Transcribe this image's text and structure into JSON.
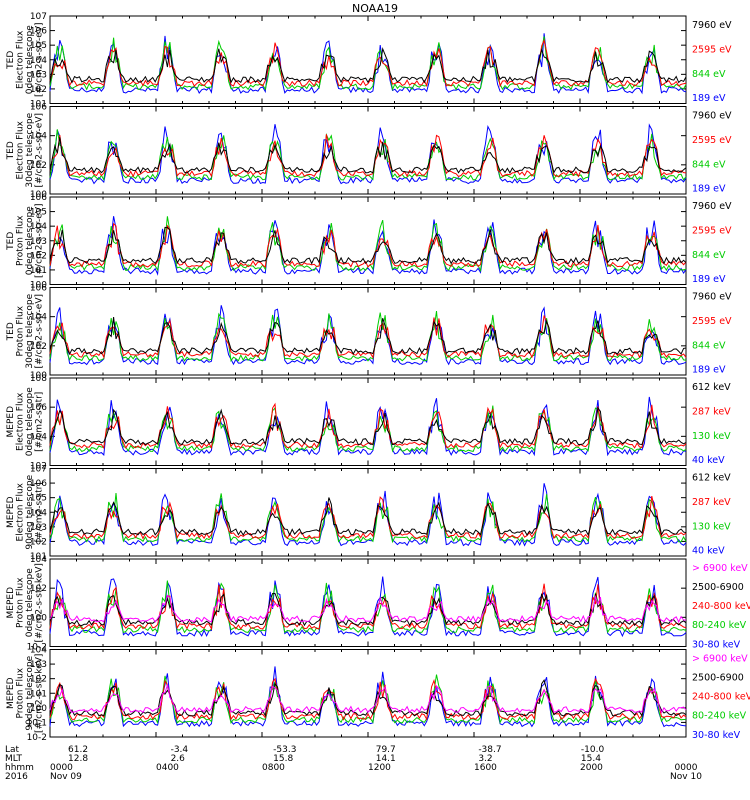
{
  "chart_data": {
    "type": "line",
    "title": "NOAA19",
    "x": {
      "rows": [
        {
          "label": "Lat",
          "values": [
            "61.2",
            "-3.4",
            "-53.3",
            "79.7",
            "-38.7",
            "-10.0"
          ]
        },
        {
          "label": "MLT",
          "values": [
            "12.8",
            "2.6",
            "15.8",
            "14.1",
            "3.2",
            "15.4"
          ]
        },
        {
          "label": "hhmm",
          "values": [
            "0000",
            "0400",
            "0800",
            "1200",
            "1600",
            "2000",
            "0000"
          ]
        },
        {
          "label": "2016",
          "values": [
            "Nov 09",
            "",
            "",
            "",
            "",
            "",
            "Nov 10"
          ]
        }
      ],
      "range_hours": [
        0,
        24
      ]
    },
    "panels": [
      {
        "instrument": "TED",
        "ylabel": [
          "TED",
          "Electron Flux",
          "0deg telescope",
          "[#/cm2-s-str-eV]"
        ],
        "yticks": [
          "10^1",
          "10^2",
          "10^3",
          "10^4",
          "10^5",
          "10^6",
          "10^7"
        ],
        "legend": [
          {
            "label": "7960 eV",
            "color": "#000000"
          },
          {
            "label": "2595 eV",
            "color": "#ff0000"
          },
          {
            "label": "844 eV",
            "color": "#00cc00"
          },
          {
            "label": "189 eV",
            "color": "#0000ff"
          }
        ]
      },
      {
        "instrument": "TED",
        "ylabel": [
          "TED",
          "Electron Flux",
          "30deg telescope",
          "[#/cm2-s-str-eV]"
        ],
        "yticks": [
          "10^0",
          "10^2",
          "10^4",
          "10^6"
        ],
        "legend": [
          {
            "label": "7960 eV",
            "color": "#000000"
          },
          {
            "label": "2595 eV",
            "color": "#ff0000"
          },
          {
            "label": "844 eV",
            "color": "#00cc00"
          },
          {
            "label": "189 eV",
            "color": "#0000ff"
          }
        ]
      },
      {
        "instrument": "TED",
        "ylabel": [
          "TED",
          "Proton Flux",
          "0deg telescope",
          "[#/cm2-s-str-eV]"
        ],
        "yticks": [
          "10^0",
          "10^1",
          "10^2",
          "10^3",
          "10^4",
          "10^5",
          "10^6"
        ],
        "legend": [
          {
            "label": "7960 eV",
            "color": "#000000"
          },
          {
            "label": "2595 eV",
            "color": "#ff0000"
          },
          {
            "label": "844 eV",
            "color": "#00cc00"
          },
          {
            "label": "189 eV",
            "color": "#0000ff"
          }
        ]
      },
      {
        "instrument": "TED",
        "ylabel": [
          "TED",
          "Proton Flux",
          "30deg telescope",
          "[#/cm2-s-str-eV]"
        ],
        "yticks": [
          "10^0",
          "10^2",
          "10^4",
          "10^6"
        ],
        "legend": [
          {
            "label": "7960 eV",
            "color": "#000000"
          },
          {
            "label": "2595 eV",
            "color": "#ff0000"
          },
          {
            "label": "844 eV",
            "color": "#00cc00"
          },
          {
            "label": "189 eV",
            "color": "#0000ff"
          }
        ]
      },
      {
        "instrument": "MEPED",
        "ylabel": [
          "MEPED",
          "Electron Flux",
          "0deg telescope",
          "[#/cm2-s-str]"
        ],
        "yticks": [
          "10^2",
          "10^4",
          "10^6",
          "10^8"
        ],
        "legend": [
          {
            "label": "612 keV",
            "color": "#000000"
          },
          {
            "label": "287 keV",
            "color": "#ff0000"
          },
          {
            "label": "130 keV",
            "color": "#00cc00"
          },
          {
            "label": "40 keV",
            "color": "#0000ff"
          }
        ]
      },
      {
        "instrument": "MEPED",
        "ylabel": [
          "MEPED",
          "Electron Flux",
          "90deg telescope",
          "[#/cm2-s-str]"
        ],
        "yticks": [
          "10^1",
          "10^2",
          "10^3",
          "10^4",
          "10^5",
          "10^6",
          "10^7"
        ],
        "legend": [
          {
            "label": "612 keV",
            "color": "#000000"
          },
          {
            "label": "287 keV",
            "color": "#ff0000"
          },
          {
            "label": "130 keV",
            "color": "#00cc00"
          },
          {
            "label": "40 keV",
            "color": "#0000ff"
          }
        ]
      },
      {
        "instrument": "MEPED",
        "ylabel": [
          "MEPED",
          "Proton Flux",
          "0deg telescope",
          "[#/cm2-s-str-keV]"
        ],
        "yticks": [
          "10^-2",
          "10^0",
          "10^2",
          "10^4"
        ],
        "legend": [
          {
            "label": "> 6900 keV",
            "color": "#ff00ff"
          },
          {
            "label": "2500-6900",
            "color": "#000000"
          },
          {
            "label": "240-800 keV",
            "color": "#ff0000"
          },
          {
            "label": "80-240 keV",
            "color": "#00cc00"
          },
          {
            "label": "30-80 keV",
            "color": "#0000ff"
          }
        ]
      },
      {
        "instrument": "MEPED",
        "ylabel": [
          "MEPED",
          "Proton Flux",
          "90deg telescope",
          "[#/cm2-s-str-keV]"
        ],
        "yticks": [
          "10^-2",
          "10^-1",
          "10^0",
          "10^1",
          "10^2",
          "10^3",
          "10^4"
        ],
        "legend": [
          {
            "label": "> 6900 keV",
            "color": "#ff00ff"
          },
          {
            "label": "2500-6900",
            "color": "#000000"
          },
          {
            "label": "240-800 keV",
            "color": "#ff0000"
          },
          {
            "label": "80-240 keV",
            "color": "#00cc00"
          },
          {
            "label": "30-80 keV",
            "color": "#0000ff"
          }
        ]
      }
    ]
  }
}
